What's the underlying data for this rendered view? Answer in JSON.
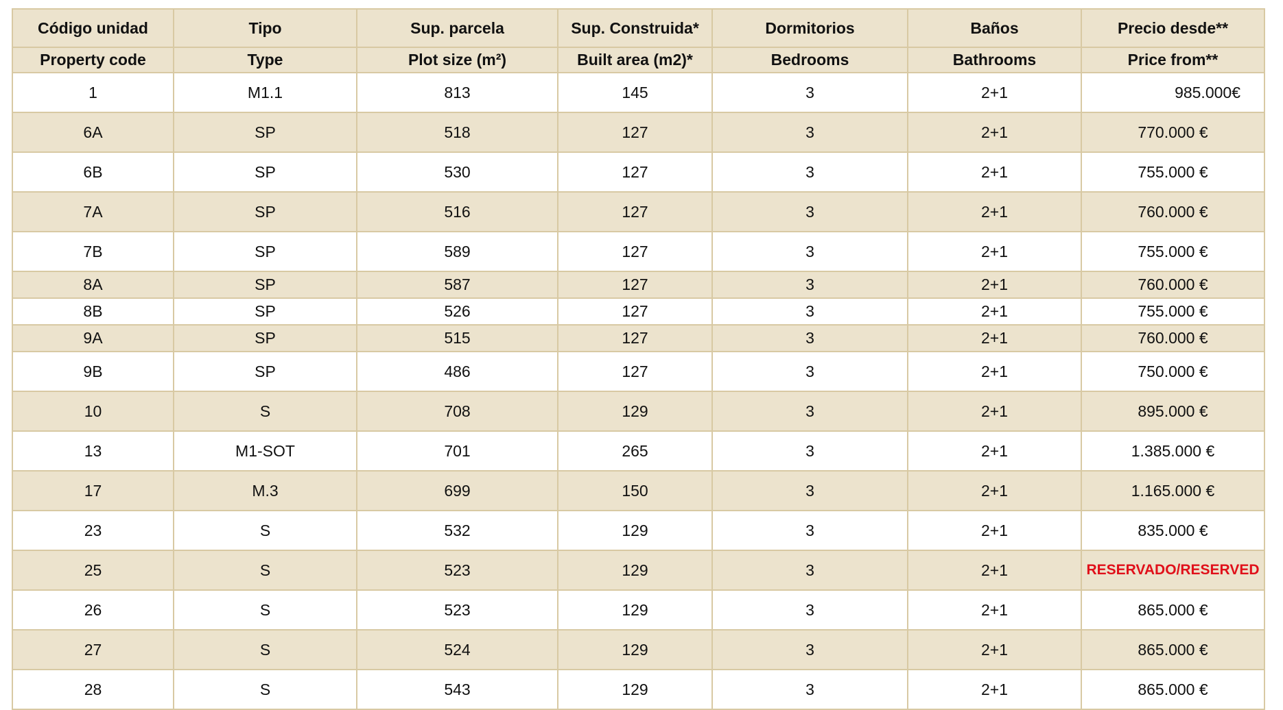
{
  "table": {
    "header_es": [
      "Código unidad",
      "Tipo",
      "Sup. parcela",
      "Sup. Construida*",
      "Dormitorios",
      "Baños",
      "Precio desde**"
    ],
    "header_en": [
      "Property  code",
      "Type",
      "Plot size (m²)",
      "Built area (m2)*",
      "Bedrooms",
      "Bathrooms",
      "Price from**"
    ],
    "rows": [
      [
        "1",
        "M1.1",
        "813",
        "145",
        "3",
        "2+1",
        "985.000€"
      ],
      [
        "6A",
        "SP",
        "518",
        "127",
        "3",
        "2+1",
        "770.000 €"
      ],
      [
        "6B",
        "SP",
        "530",
        "127",
        "3",
        "2+1",
        "755.000 €"
      ],
      [
        "7A",
        "SP",
        "516",
        "127",
        "3",
        "2+1",
        "760.000 €"
      ],
      [
        "7B",
        "SP",
        "589",
        "127",
        "3",
        "2+1",
        "755.000 €"
      ],
      [
        "8A",
        "SP",
        "587",
        "127",
        "3",
        "2+1",
        "760.000 €"
      ],
      [
        "8B",
        "SP",
        "526",
        "127",
        "3",
        "2+1",
        "755.000 €"
      ],
      [
        "9A",
        "SP",
        "515",
        "127",
        "3",
        "2+1",
        "760.000 €"
      ],
      [
        "9B",
        "SP",
        "486",
        "127",
        "3",
        "2+1",
        "750.000 €"
      ],
      [
        "10",
        "S",
        "708",
        "129",
        "3",
        "2+1",
        "895.000 €"
      ],
      [
        "13",
        "M1-SOT",
        "701",
        "265",
        "3",
        "2+1",
        "1.385.000 €"
      ],
      [
        "17",
        "M.3",
        "699",
        "150",
        "3",
        "2+1",
        "1.165.000 €"
      ],
      [
        "23",
        "S",
        "532",
        "129",
        "3",
        "2+1",
        "835.000 €"
      ],
      [
        "25",
        "S",
        "523",
        "129",
        "3",
        "2+1",
        "RESERVADO/RESERVED"
      ],
      [
        "26",
        "S",
        "523",
        "129",
        "3",
        "2+1",
        "865.000 €"
      ],
      [
        "27",
        "S",
        "524",
        "129",
        "3",
        "2+1",
        "865.000 €"
      ],
      [
        "28",
        "S",
        "543",
        "129",
        "3",
        "2+1",
        "865.000 €"
      ]
    ]
  }
}
